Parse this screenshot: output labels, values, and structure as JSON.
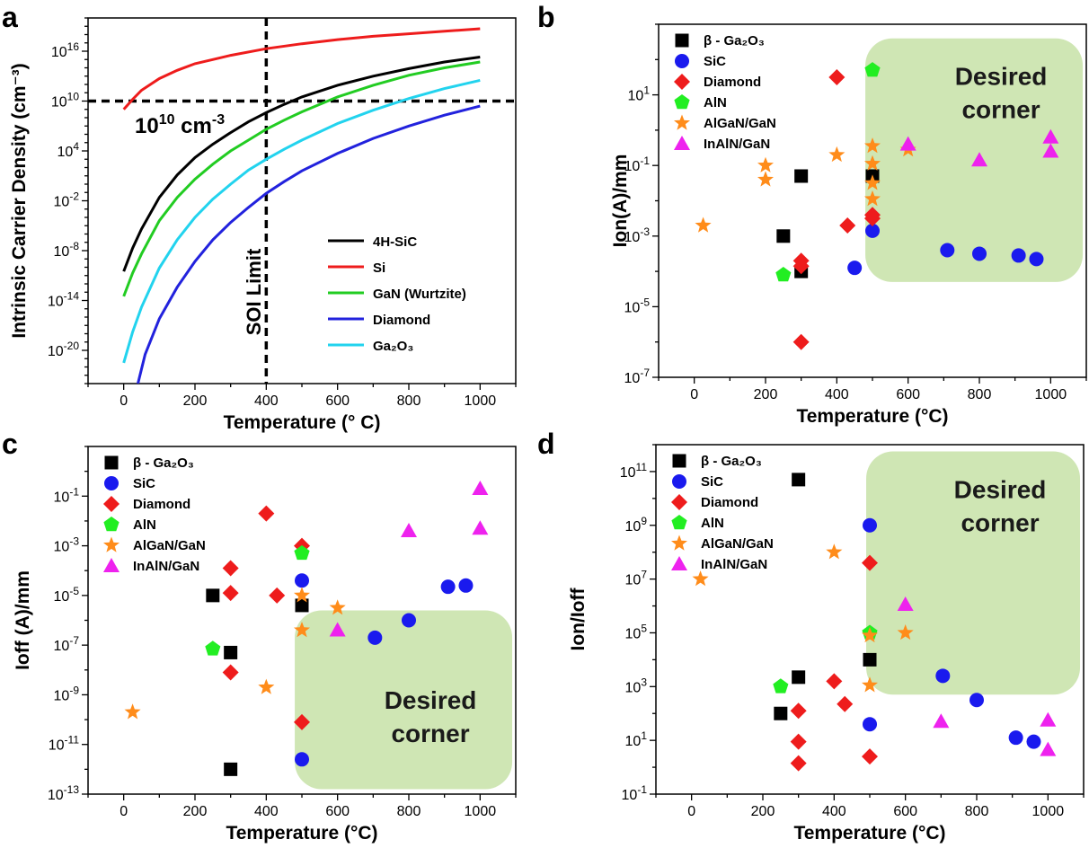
{
  "chart_data": [
    {
      "panel": "a",
      "type": "line",
      "xlabel": "Temperature (° C)",
      "ylabel": "Intrinsic Carrier Density (cm⁻³)",
      "xlim": [
        -100,
        1100
      ],
      "ylim": [
        -24,
        20
      ],
      "y_scale": "log",
      "x_ticks": [
        0,
        200,
        400,
        600,
        800,
        1000
      ],
      "y_ticks": [
        16,
        10,
        4,
        -2,
        -8,
        -14,
        -20
      ],
      "legend_placement": "lower-right",
      "threshold_label": "10¹⁰ cm⁻³",
      "threshold_log": 10,
      "vline_x": 400,
      "vline_label": "SOI Limit",
      "series": [
        {
          "name": "4H-SiC",
          "color": "#000000",
          "x": [
            0,
            25,
            50,
            100,
            150,
            200,
            250,
            300,
            350,
            400,
            450,
            500,
            600,
            700,
            800,
            900,
            1000
          ],
          "y_log": [
            -10.5,
            -7.7,
            -5.4,
            -1.6,
            1.1,
            3.2,
            4.8,
            6.2,
            7.5,
            8.6,
            9.6,
            10.5,
            11.9,
            13.0,
            13.9,
            14.7,
            15.3
          ]
        },
        {
          "name": "Si",
          "color": "#ee1c1c",
          "x": [
            0,
            25,
            50,
            100,
            150,
            200,
            250,
            300,
            400,
            500,
            600,
            700,
            800,
            900,
            1000
          ],
          "y_log": [
            9.0,
            10.2,
            11.3,
            12.7,
            13.7,
            14.5,
            15.0,
            15.5,
            16.3,
            16.9,
            17.4,
            17.8,
            18.1,
            18.4,
            18.7
          ]
        },
        {
          "name": "GaN (Wurtzite)",
          "color": "#22cc22",
          "x": [
            0,
            25,
            50,
            100,
            150,
            200,
            250,
            300,
            350,
            400,
            450,
            500,
            600,
            700,
            800,
            900,
            1000
          ],
          "y_log": [
            -13.5,
            -10.7,
            -8.4,
            -4.4,
            -1.6,
            0.6,
            2.4,
            4.0,
            5.3,
            6.6,
            7.7,
            8.7,
            10.5,
            11.9,
            13.1,
            14.0,
            14.7
          ]
        },
        {
          "name": "Diamond",
          "color": "#2222dd",
          "x": [
            40,
            60,
            100,
            150,
            200,
            250,
            300,
            350,
            400,
            450,
            500,
            600,
            700,
            800,
            900,
            1000
          ],
          "y_log": [
            -24.0,
            -20.5,
            -16.2,
            -12.4,
            -9.3,
            -6.7,
            -4.6,
            -2.8,
            -1.1,
            0.3,
            1.6,
            3.7,
            5.5,
            7.0,
            8.3,
            9.4
          ]
        },
        {
          "name": "Ga₂O₃",
          "color": "#22d3ee",
          "x": [
            0,
            25,
            50,
            100,
            150,
            200,
            250,
            300,
            350,
            400,
            450,
            500,
            600,
            700,
            800,
            900,
            1000
          ],
          "y_log": [
            -21.5,
            -17.8,
            -14.8,
            -10.1,
            -6.7,
            -4.0,
            -1.8,
            0.0,
            1.7,
            3.0,
            4.2,
            5.3,
            7.3,
            8.9,
            10.3,
            11.5,
            12.5
          ]
        }
      ]
    },
    {
      "panel": "b",
      "type": "scatter",
      "xlabel": "Temperature (°C)",
      "ylabel": "Ion(A)/mm",
      "xlim": [
        -100,
        1100
      ],
      "ylim": [
        -7,
        3
      ],
      "y_scale": "log",
      "x_ticks": [
        0,
        200,
        400,
        600,
        800,
        1000
      ],
      "y_ticks": [
        1,
        -1,
        -3,
        -5,
        -7
      ],
      "legend_placement": "top-left",
      "region_label": [
        "Desired",
        "corner"
      ],
      "region": {
        "x": [
          480,
          1090
        ],
        "y_log": [
          -4.3,
          2.6
        ]
      },
      "series": [
        {
          "name": "β - Ga₂O₃",
          "marker": "square",
          "color": "#000000",
          "x": [
            250,
            300,
            300,
            500
          ],
          "y_log": [
            -3.0,
            -1.3,
            -4.0,
            -1.3
          ]
        },
        {
          "name": "SiC",
          "marker": "circle",
          "color": "#1a1aee",
          "x": [
            450,
            500,
            710,
            800,
            910,
            960
          ],
          "y_log": [
            -3.9,
            -2.85,
            -3.4,
            -3.5,
            -3.55,
            -3.65
          ]
        },
        {
          "name": "Diamond",
          "marker": "diamond",
          "color": "#ee1c1c",
          "x": [
            400,
            300,
            300,
            430,
            500,
            500,
            300
          ],
          "y_log": [
            1.5,
            -3.7,
            -3.85,
            -2.7,
            -2.5,
            -2.4,
            -6.0
          ]
        },
        {
          "name": "AlN",
          "marker": "pentagon",
          "color": "#22ee22",
          "x": [
            250,
            500
          ],
          "y_log": [
            -4.1,
            1.7
          ]
        },
        {
          "name": "AlGaN/GaN",
          "marker": "star",
          "color": "#ff8c1a",
          "x": [
            25,
            200,
            200,
            400,
            500,
            500,
            500,
            500,
            600
          ],
          "y_log": [
            -2.7,
            -1.0,
            -1.4,
            -0.7,
            -0.45,
            -0.95,
            -1.5,
            -1.95,
            -0.55
          ]
        },
        {
          "name": "InAlN/GaN",
          "marker": "triangle",
          "color": "#ee22ee",
          "x": [
            600,
            800,
            1000,
            1000
          ],
          "y_log": [
            -0.4,
            -0.85,
            -0.2,
            -0.6
          ]
        }
      ]
    },
    {
      "panel": "c",
      "type": "scatter",
      "xlabel": "Temperature (°C)",
      "ylabel": "Ioff (A)/mm",
      "xlim": [
        -100,
        1100
      ],
      "ylim": [
        -13,
        1
      ],
      "y_scale": "log",
      "x_ticks": [
        0,
        200,
        400,
        600,
        800,
        1000
      ],
      "y_ticks": [
        -1,
        -3,
        -5,
        -7,
        -9,
        -11,
        -13
      ],
      "legend_placement": "top-left",
      "region_label": [
        "Desired",
        "corner"
      ],
      "region": {
        "x": [
          480,
          1090
        ],
        "y_log": [
          -12.8,
          -5.6
        ]
      },
      "series": [
        {
          "name": "β - Ga₂O₃",
          "marker": "square",
          "color": "#000000",
          "x": [
            250,
            300,
            500,
            300
          ],
          "y_log": [
            -5.0,
            -7.3,
            -5.4,
            -12.0
          ]
        },
        {
          "name": "SiC",
          "marker": "circle",
          "color": "#1a1aee",
          "x": [
            500,
            500,
            705,
            800,
            910,
            960
          ],
          "y_log": [
            -4.4,
            -11.6,
            -6.7,
            -6.0,
            -4.65,
            -4.6
          ]
        },
        {
          "name": "Diamond",
          "marker": "diamond",
          "color": "#ee1c1c",
          "x": [
            400,
            500,
            300,
            300,
            430,
            300,
            500
          ],
          "y_log": [
            -1.7,
            -3.0,
            -3.9,
            -4.9,
            -5.0,
            -8.1,
            -10.1
          ]
        },
        {
          "name": "AlN",
          "marker": "pentagon",
          "color": "#22ee22",
          "x": [
            250,
            500
          ],
          "y_log": [
            -7.15,
            -3.3
          ]
        },
        {
          "name": "AlGaN/GaN",
          "marker": "star",
          "color": "#ff8c1a",
          "x": [
            25,
            400,
            500,
            500,
            600
          ],
          "y_log": [
            -9.7,
            -8.7,
            -5.0,
            -6.4,
            -5.5
          ]
        },
        {
          "name": "InAlN/GaN",
          "marker": "triangle",
          "color": "#ee22ee",
          "x": [
            1000,
            1000,
            800,
            600
          ],
          "y_log": [
            -0.7,
            -2.3,
            -2.4,
            -6.4
          ]
        }
      ]
    },
    {
      "panel": "d",
      "type": "scatter",
      "xlabel": "Temperature (°C)",
      "ylabel": "Ion/Ioff",
      "xlim": [
        -100,
        1100
      ],
      "ylim": [
        -1,
        12
      ],
      "y_scale": "log",
      "x_ticks": [
        0,
        200,
        400,
        600,
        800,
        1000
      ],
      "y_ticks": [
        11,
        9,
        7,
        5,
        3,
        1,
        -1
      ],
      "legend_placement": "top-left",
      "region_label": [
        "Desired",
        "corner"
      ],
      "region": {
        "x": [
          490,
          1090
        ],
        "y_log": [
          2.7,
          11.75
        ]
      },
      "series": [
        {
          "name": "β - Ga₂O₃",
          "marker": "square",
          "color": "#000000",
          "x": [
            300,
            300,
            250,
            500
          ],
          "y_log": [
            10.7,
            3.35,
            2.0,
            4.0
          ]
        },
        {
          "name": "SiC",
          "marker": "circle",
          "color": "#1a1aee",
          "x": [
            500,
            500,
            705,
            800,
            910,
            960
          ],
          "y_log": [
            9.0,
            1.6,
            3.4,
            2.5,
            1.1,
            0.95
          ]
        },
        {
          "name": "Diamond",
          "marker": "diamond",
          "color": "#ee1c1c",
          "x": [
            500,
            400,
            430,
            300,
            300,
            300,
            500
          ],
          "y_log": [
            7.6,
            3.2,
            2.35,
            2.1,
            0.95,
            0.15,
            0.4
          ]
        },
        {
          "name": "AlN",
          "marker": "pentagon",
          "color": "#22ee22",
          "x": [
            250,
            500
          ],
          "y_log": [
            3.0,
            5.0
          ]
        },
        {
          "name": "AlGaN/GaN",
          "marker": "star",
          "color": "#ff8c1a",
          "x": [
            25,
            400,
            500,
            600,
            500
          ],
          "y_log": [
            7.0,
            8.0,
            4.9,
            5.0,
            3.05
          ]
        },
        {
          "name": "InAlN/GaN",
          "marker": "triangle",
          "color": "#ee22ee",
          "x": [
            600,
            700,
            1000,
            1000
          ],
          "y_log": [
            6.05,
            1.7,
            1.75,
            0.65
          ]
        }
      ]
    }
  ]
}
